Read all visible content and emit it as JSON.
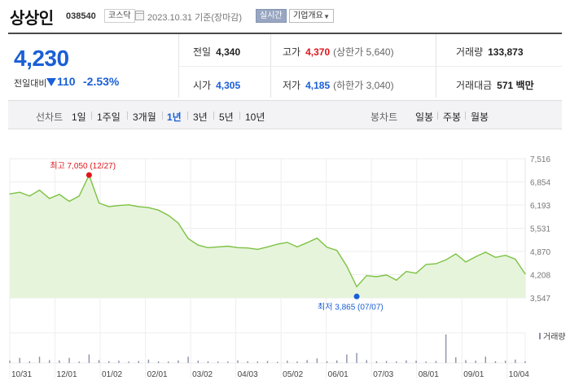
{
  "header": {
    "name": "상상인",
    "code": "038540",
    "market": "코스닥",
    "date": "2023.10.31 기준(장마감)",
    "realtime_label": "실시간",
    "overview_label": "기업개요"
  },
  "price": {
    "current": "4,230",
    "change_label": "전일대비",
    "change": "110",
    "change_pct": "-2.53%"
  },
  "stats": {
    "prev_close_label": "전일",
    "prev_close": "4,340",
    "high_label": "고가",
    "high": "4,370",
    "upper_limit": "(상한가 5,640)",
    "volume_label": "거래량",
    "volume": "133,873",
    "open_label": "시가",
    "open": "4,305",
    "low_label": "저가",
    "low": "4,185",
    "lower_limit": "(하한가 3,040)",
    "turnover_label": "거래대금",
    "turnover": "571 백만"
  },
  "tabs": {
    "line_label": "선차트",
    "line": [
      "1일",
      "1주일",
      "3개월",
      "1년",
      "3년",
      "5년",
      "10년"
    ],
    "active": "1년",
    "candle_label": "봉차트",
    "candle": [
      "일봉",
      "주봉",
      "월봉"
    ]
  },
  "colors": {
    "line": "#7cc242",
    "fill": "#e7f4dc",
    "up": "#e0161c",
    "down": "#1a5fd6",
    "volume": "#8a90a8"
  },
  "chart_data": {
    "type": "area",
    "y_ticks": [
      7516,
      6854,
      6193,
      5531,
      4870,
      4208,
      3547
    ],
    "ylim": [
      3547,
      7516
    ],
    "x_ticks": [
      "10/31",
      "12/01",
      "01/02",
      "02/01",
      "03/02",
      "04/03",
      "05/02",
      "06/01",
      "07/03",
      "08/01",
      "09/01",
      "10/04"
    ],
    "x": [
      "10/31",
      "11/07",
      "11/14",
      "11/21",
      "11/28",
      "12/05",
      "12/12",
      "12/19",
      "12/27",
      "01/03",
      "01/10",
      "01/17",
      "01/24",
      "01/31",
      "02/07",
      "02/14",
      "02/21",
      "02/28",
      "03/07",
      "03/14",
      "03/21",
      "03/28",
      "04/04",
      "04/11",
      "04/18",
      "04/25",
      "05/02",
      "05/09",
      "05/16",
      "05/23",
      "05/30",
      "06/06",
      "06/13",
      "06/20",
      "06/27",
      "07/07",
      "07/11",
      "07/18",
      "07/25",
      "08/01",
      "08/08",
      "08/15",
      "08/22",
      "08/29",
      "09/05",
      "09/12",
      "09/19",
      "09/26",
      "10/04",
      "10/11",
      "10/18",
      "10/25",
      "10/31"
    ],
    "series": [
      {
        "values": [
          6510,
          6560,
          6450,
          6620,
          6380,
          6500,
          6300,
          6450,
          7050,
          6250,
          6150,
          6180,
          6200,
          6150,
          6120,
          6050,
          5900,
          5680,
          5240,
          5050,
          4980,
          5000,
          5020,
          4980,
          4970,
          4930,
          5000,
          5080,
          5130,
          5000,
          5120,
          5250,
          4990,
          4900,
          4450,
          3865,
          4180,
          4150,
          4200,
          4050,
          4300,
          4250,
          4500,
          4520,
          4630,
          4800,
          4570,
          4720,
          4850,
          4700,
          4760,
          4650,
          4230
        ]
      }
    ],
    "volume": [
      0.08,
      0.18,
      0.06,
      0.22,
      0.1,
      0.09,
      0.18,
      0.05,
      0.3,
      0.1,
      0.06,
      0.08,
      0.05,
      0.07,
      0.12,
      0.06,
      0.05,
      0.09,
      0.22,
      0.08,
      0.06,
      0.05,
      0.05,
      0.09,
      0.06,
      0.05,
      0.07,
      0.04,
      0.08,
      0.05,
      0.1,
      0.16,
      0.06,
      0.09,
      0.3,
      0.35,
      0.1,
      0.06,
      0.07,
      0.05,
      0.09,
      0.08,
      0.05,
      0.07,
      1.0,
      0.2,
      0.1,
      0.08,
      0.22,
      0.06,
      0.08,
      0.12,
      0.06
    ],
    "max_label": "최고 7,050 (12/27)",
    "min_label": "최저 3,865 (07/07)",
    "max_index": 8,
    "min_index": 35,
    "volume_label": "거래량"
  }
}
